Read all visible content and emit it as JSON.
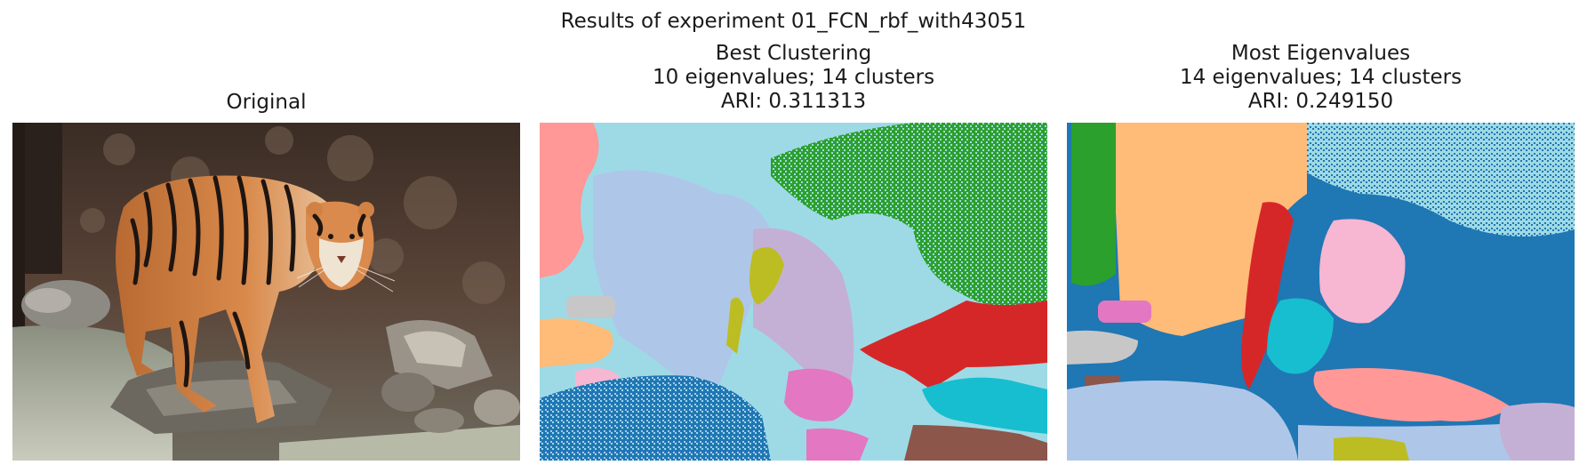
{
  "figure": {
    "suptitle": "Results of experiment 01_FCN_rbf_with43051"
  },
  "panels": [
    {
      "title_lines": [
        "Original"
      ]
    },
    {
      "title_lines": [
        "Best Clustering",
        "10 eigenvalues; 14 clusters",
        "ARI: 0.311313"
      ]
    },
    {
      "title_lines": [
        "Most Eigenvalues",
        "14 eigenvalues; 14 clusters",
        "ARI: 0.249150"
      ]
    }
  ],
  "palette": {
    "blue": "#1f77b4",
    "light_blue": "#aec7e8",
    "cyan_light": "#9edae5",
    "green": "#2ca02c",
    "red": "#d62728",
    "pink": "#e377c2",
    "light_pink": "#f7b6d2",
    "salmon": "#ff9896",
    "orange_light": "#ffbb78",
    "olive": "#bcbd22",
    "cyan": "#17becf",
    "brown": "#8c564b",
    "gray_light": "#c7c7c7",
    "lavender": "#c5b0d5"
  }
}
